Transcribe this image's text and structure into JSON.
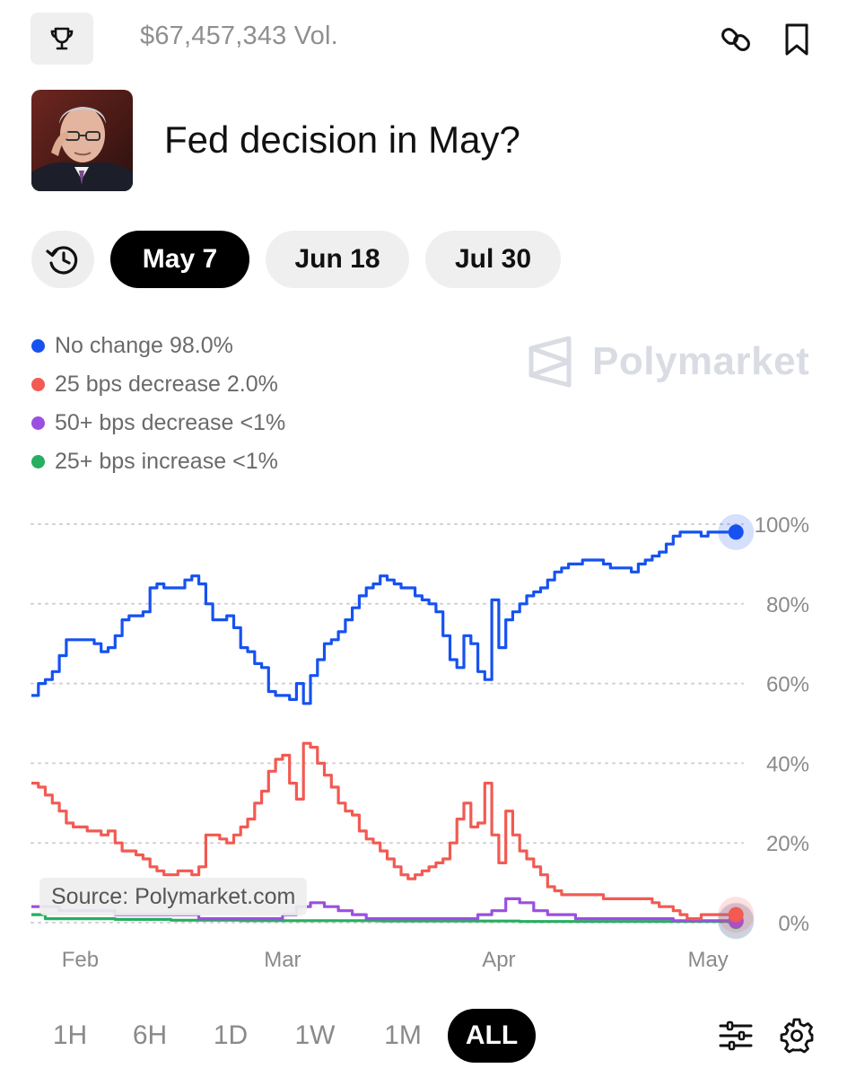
{
  "header": {
    "volume": "$67,457,343 Vol.",
    "icons": {
      "left": "trophy-icon",
      "link": "link-icon",
      "bookmark": "bookmark-icon"
    }
  },
  "market": {
    "title": "Fed decision in May?",
    "avatar": "market-avatar"
  },
  "date_tabs": [
    {
      "label": "May 7",
      "active": true
    },
    {
      "label": "Jun 18",
      "active": false
    },
    {
      "label": "Jul 30",
      "active": false
    }
  ],
  "legend": [
    {
      "name": "No change",
      "value": "98.0%",
      "color": "#1652f0"
    },
    {
      "name": "25 bps decrease",
      "value": "2.0%",
      "color": "#f25a52"
    },
    {
      "name": "50+ bps decrease",
      "value": "<1%",
      "color": "#9b4fe0"
    },
    {
      "name": "25+ bps increase",
      "value": "<1%",
      "color": "#27ae60"
    }
  ],
  "watermark": "Polymarket",
  "source_label": "Source: Polymarket.com",
  "timeframes": [
    {
      "label": "1H",
      "active": false
    },
    {
      "label": "6H",
      "active": false
    },
    {
      "label": "1D",
      "active": false
    },
    {
      "label": "1W",
      "active": false
    },
    {
      "label": "1M",
      "active": false
    },
    {
      "label": "ALL",
      "active": true
    }
  ],
  "chart_data": {
    "type": "line",
    "x_tick_labels": [
      "Feb",
      "Mar",
      "Apr",
      "May"
    ],
    "y_tick_labels": [
      "100%",
      "80%",
      "60%",
      "40%",
      "20%",
      "0%"
    ],
    "ylim": [
      0,
      100
    ],
    "y_unit": "%",
    "x_unit": "days from Jan 25",
    "xlim": [
      0,
      102
    ],
    "x_tick_positions": [
      7,
      36,
      67,
      97
    ],
    "grid": true,
    "series": [
      {
        "name": "No change",
        "color": "#1652f0",
        "x": [
          0,
          1,
          2,
          3,
          4,
          5,
          6,
          7,
          8,
          9,
          10,
          11,
          12,
          13,
          14,
          15,
          16,
          17,
          18,
          19,
          20,
          21,
          22,
          23,
          24,
          25,
          26,
          27,
          28,
          29,
          30,
          31,
          32,
          33,
          34,
          35,
          36,
          37,
          38,
          39,
          40,
          41,
          42,
          43,
          44,
          45,
          46,
          47,
          48,
          49,
          50,
          51,
          52,
          53,
          54,
          55,
          56,
          57,
          58,
          59,
          60,
          61,
          62,
          63,
          64,
          65,
          66,
          67,
          68,
          69,
          70,
          71,
          72,
          73,
          74,
          75,
          76,
          77,
          78,
          79,
          80,
          81,
          82,
          83,
          84,
          85,
          86,
          87,
          88,
          89,
          90,
          91,
          92,
          93,
          94,
          95,
          96,
          97,
          98,
          99,
          100,
          101
        ],
        "y": [
          57,
          60,
          61,
          63,
          67,
          71,
          71,
          71,
          71,
          70,
          68,
          69,
          72,
          76,
          77,
          77,
          78,
          84,
          85,
          84,
          84,
          84,
          86,
          87,
          85,
          80,
          76,
          76,
          77,
          74,
          69,
          68,
          65,
          64,
          58,
          57,
          57,
          56,
          60,
          55,
          62,
          66,
          70,
          71,
          73,
          76,
          79,
          82,
          84,
          85,
          87,
          86,
          85,
          84,
          84,
          82,
          81,
          80,
          78,
          72,
          66,
          64,
          72,
          70,
          63,
          61,
          81,
          69,
          76,
          78,
          80,
          82,
          83,
          84,
          86,
          88,
          89,
          90,
          90,
          91,
          91,
          91,
          90,
          89,
          89,
          89,
          88,
          90,
          91,
          92,
          93,
          95,
          97,
          98,
          98,
          98,
          97,
          98,
          98,
          98,
          98,
          98
        ]
      },
      {
        "name": "25 bps decrease",
        "color": "#f25a52",
        "x": [
          0,
          1,
          2,
          3,
          4,
          5,
          6,
          7,
          8,
          9,
          10,
          11,
          12,
          13,
          14,
          15,
          16,
          17,
          18,
          19,
          20,
          21,
          22,
          23,
          24,
          25,
          26,
          27,
          28,
          29,
          30,
          31,
          32,
          33,
          34,
          35,
          36,
          37,
          38,
          39,
          40,
          41,
          42,
          43,
          44,
          45,
          46,
          47,
          48,
          49,
          50,
          51,
          52,
          53,
          54,
          55,
          56,
          57,
          58,
          59,
          60,
          61,
          62,
          63,
          64,
          65,
          66,
          67,
          68,
          69,
          70,
          71,
          72,
          73,
          74,
          75,
          76,
          77,
          78,
          79,
          80,
          81,
          82,
          83,
          84,
          85,
          86,
          87,
          88,
          89,
          90,
          91,
          92,
          93,
          94,
          95,
          96,
          97,
          98,
          99,
          100,
          101
        ],
        "y": [
          35,
          34,
          32,
          30,
          28,
          25,
          24,
          24,
          23,
          23,
          22,
          23,
          20,
          18,
          18,
          17,
          16,
          14,
          13,
          12,
          12,
          13,
          13,
          12,
          14,
          22,
          22,
          21,
          20,
          22,
          24,
          26,
          30,
          33,
          38,
          41,
          42,
          35,
          31,
          45,
          44,
          40,
          37,
          34,
          30,
          28,
          27,
          23,
          21,
          20,
          18,
          16,
          14,
          12,
          11,
          12,
          13,
          14,
          15,
          16,
          20,
          26,
          30,
          24,
          25,
          35,
          22,
          15,
          28,
          22,
          18,
          16,
          14,
          12,
          9,
          8,
          7,
          7,
          7,
          7,
          7,
          7,
          6,
          6,
          6,
          6,
          6,
          6,
          6,
          5,
          4,
          4,
          3,
          2,
          1,
          1,
          2,
          2,
          2,
          2,
          2,
          2
        ]
      },
      {
        "name": "50+ bps decrease",
        "color": "#9b4fe0",
        "x": [
          0,
          4,
          8,
          12,
          16,
          20,
          24,
          28,
          32,
          36,
          38,
          40,
          42,
          44,
          46,
          48,
          50,
          52,
          56,
          60,
          64,
          66,
          68,
          70,
          72,
          74,
          76,
          78,
          80,
          84,
          88,
          92,
          96,
          101
        ],
        "y": [
          4,
          3,
          3,
          2,
          2,
          2,
          1,
          1,
          1,
          2,
          4,
          5,
          4,
          3,
          2,
          1,
          1,
          1,
          1,
          1,
          2,
          3,
          6,
          5,
          3,
          2,
          2,
          1,
          1,
          1,
          1,
          0.5,
          0.5,
          0.5
        ]
      },
      {
        "name": "25+ bps increase",
        "color": "#27ae60",
        "x": [
          0,
          2,
          6,
          12,
          20,
          30,
          40,
          50,
          60,
          70,
          80,
          90,
          101
        ],
        "y": [
          2,
          1,
          1,
          0.8,
          0.6,
          0.5,
          0.5,
          0.4,
          0.4,
          0.3,
          0.3,
          0.3,
          0.3
        ]
      }
    ]
  }
}
